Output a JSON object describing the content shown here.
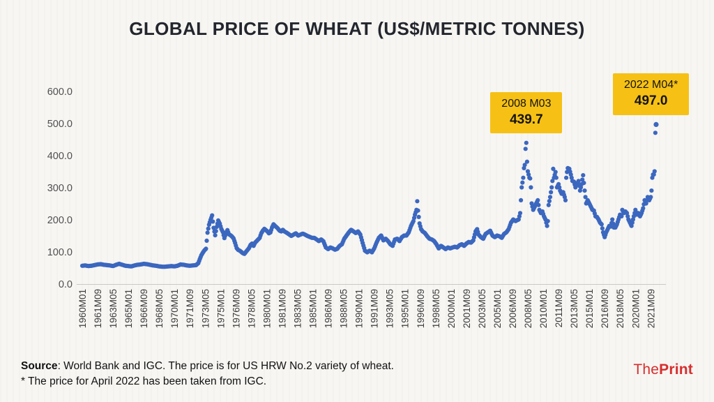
{
  "chart_data": {
    "type": "scatter",
    "title": "GLOBAL PRICE OF WHEAT (US$/METRIC TONNES)",
    "xlabel": "",
    "ylabel": "",
    "ylim": [
      0,
      600
    ],
    "grid": false,
    "legend": "none",
    "marker_color": "#3b67bf",
    "y_ticks": [
      "0.0",
      "100.0",
      "200.0",
      "300.0",
      "400.0",
      "500.0",
      "600.0"
    ],
    "x_range": [
      "1960M01",
      "2022M04"
    ],
    "x_tick_interval_months": 20,
    "x_ticks": [
      "1960M01",
      "1961M09",
      "1963M05",
      "1965M01",
      "1966M09",
      "1968M05",
      "1970M01",
      "1971M09",
      "1973M05",
      "1975M01",
      "1976M09",
      "1978M05",
      "1980M01",
      "1981M09",
      "1983M05",
      "1985M01",
      "1986M09",
      "1988M05",
      "1990M01",
      "1991M09",
      "1993M05",
      "1995M01",
      "1996M09",
      "1998M05",
      "2000M01",
      "2001M09",
      "2003M05",
      "2005M01",
      "2006M09",
      "2008M05",
      "2010M01",
      "2011M09",
      "2013M05",
      "2015M01",
      "2016M09",
      "2018M05",
      "2020M01",
      "2021M09"
    ],
    "annotations": [
      {
        "label": "2008 M03",
        "value_label": "439.7",
        "x": "2008M03",
        "y": 439.7
      },
      {
        "label": "2022 M04*",
        "value_label": "497.0",
        "x": "2022M04",
        "y": 497.0
      }
    ],
    "points": [
      [
        "1960M01",
        57
      ],
      [
        "1960M05",
        58
      ],
      [
        "1960M09",
        56
      ],
      [
        "1961M01",
        57
      ],
      [
        "1961M05",
        59
      ],
      [
        "1961M09",
        61
      ],
      [
        "1962M01",
        62
      ],
      [
        "1962M05",
        60
      ],
      [
        "1962M09",
        59
      ],
      [
        "1963M01",
        58
      ],
      [
        "1963M05",
        56
      ],
      [
        "1963M09",
        60
      ],
      [
        "1964M01",
        63
      ],
      [
        "1964M05",
        60
      ],
      [
        "1964M09",
        57
      ],
      [
        "1965M01",
        56
      ],
      [
        "1965M05",
        55
      ],
      [
        "1965M09",
        58
      ],
      [
        "1966M01",
        60
      ],
      [
        "1966M05",
        61
      ],
      [
        "1966M09",
        63
      ],
      [
        "1967M01",
        62
      ],
      [
        "1967M05",
        60
      ],
      [
        "1967M09",
        58
      ],
      [
        "1968M01",
        57
      ],
      [
        "1968M05",
        55
      ],
      [
        "1968M09",
        54
      ],
      [
        "1969M01",
        54
      ],
      [
        "1969M05",
        55
      ],
      [
        "1969M09",
        56
      ],
      [
        "1970M01",
        55
      ],
      [
        "1970M05",
        57
      ],
      [
        "1970M09",
        61
      ],
      [
        "1971M01",
        60
      ],
      [
        "1971M05",
        58
      ],
      [
        "1971M09",
        57
      ],
      [
        "1972M01",
        58
      ],
      [
        "1972M05",
        59
      ],
      [
        "1972M08",
        65
      ],
      [
        "1972M10",
        78
      ],
      [
        "1972M12",
        90
      ],
      [
        "1973M02",
        98
      ],
      [
        "1973M04",
        105
      ],
      [
        "1973M06",
        110
      ],
      [
        "1973M08",
        160
      ],
      [
        "1973M10",
        185
      ],
      [
        "1973M12",
        200
      ],
      [
        "1974M02",
        214
      ],
      [
        "1974M04",
        175
      ],
      [
        "1974M06",
        152
      ],
      [
        "1974M08",
        178
      ],
      [
        "1974M10",
        198
      ],
      [
        "1974M12",
        188
      ],
      [
        "1975M02",
        172
      ],
      [
        "1975M04",
        162
      ],
      [
        "1975M06",
        143
      ],
      [
        "1975M08",
        158
      ],
      [
        "1975M10",
        168
      ],
      [
        "1975M12",
        155
      ],
      [
        "1976M02",
        152
      ],
      [
        "1976M04",
        148
      ],
      [
        "1976M06",
        142
      ],
      [
        "1976M08",
        128
      ],
      [
        "1976M10",
        112
      ],
      [
        "1976M12",
        106
      ],
      [
        "1977M02",
        104
      ],
      [
        "1977M04",
        100
      ],
      [
        "1977M06",
        96
      ],
      [
        "1977M08",
        94
      ],
      [
        "1977M10",
        100
      ],
      [
        "1977M12",
        106
      ],
      [
        "1978M02",
        112
      ],
      [
        "1978M04",
        122
      ],
      [
        "1978M06",
        126
      ],
      [
        "1978M08",
        119
      ],
      [
        "1978M10",
        129
      ],
      [
        "1978M12",
        134
      ],
      [
        "1979M02",
        139
      ],
      [
        "1979M04",
        144
      ],
      [
        "1979M06",
        158
      ],
      [
        "1979M08",
        166
      ],
      [
        "1979M10",
        172
      ],
      [
        "1979M12",
        168
      ],
      [
        "1980M02",
        164
      ],
      [
        "1980M04",
        158
      ],
      [
        "1980M06",
        161
      ],
      [
        "1980M08",
        176
      ],
      [
        "1980M10",
        186
      ],
      [
        "1980M12",
        181
      ],
      [
        "1981M02",
        177
      ],
      [
        "1981M04",
        172
      ],
      [
        "1981M06",
        166
      ],
      [
        "1981M08",
        164
      ],
      [
        "1981M10",
        169
      ],
      [
        "1981M12",
        164
      ],
      [
        "1982M03",
        160
      ],
      [
        "1982M06",
        155
      ],
      [
        "1982M09",
        150
      ],
      [
        "1982M12",
        154
      ],
      [
        "1983M03",
        158
      ],
      [
        "1983M06",
        151
      ],
      [
        "1983M09",
        154
      ],
      [
        "1983M12",
        157
      ],
      [
        "1984M03",
        154
      ],
      [
        "1984M06",
        150
      ],
      [
        "1984M09",
        147
      ],
      [
        "1984M12",
        144
      ],
      [
        "1985M03",
        144
      ],
      [
        "1985M06",
        139
      ],
      [
        "1985M09",
        134
      ],
      [
        "1985M12",
        139
      ],
      [
        "1986M03",
        133
      ],
      [
        "1986M06",
        114
      ],
      [
        "1986M09",
        109
      ],
      [
        "1986M12",
        114
      ],
      [
        "1987M03",
        111
      ],
      [
        "1987M06",
        107
      ],
      [
        "1987M09",
        110
      ],
      [
        "1987M12",
        119
      ],
      [
        "1988M03",
        124
      ],
      [
        "1988M06",
        141
      ],
      [
        "1988M09",
        151
      ],
      [
        "1988M12",
        161
      ],
      [
        "1989M03",
        169
      ],
      [
        "1989M06",
        164
      ],
      [
        "1989M09",
        159
      ],
      [
        "1989M12",
        164
      ],
      [
        "1990M03",
        154
      ],
      [
        "1990M06",
        128
      ],
      [
        "1990M09",
        104
      ],
      [
        "1990M12",
        99
      ],
      [
        "1991M03",
        104
      ],
      [
        "1991M06",
        99
      ],
      [
        "1991M09",
        111
      ],
      [
        "1991M12",
        129
      ],
      [
        "1992M03",
        144
      ],
      [
        "1992M06",
        151
      ],
      [
        "1992M09",
        136
      ],
      [
        "1992M12",
        141
      ],
      [
        "1993M03",
        134
      ],
      [
        "1993M06",
        124
      ],
      [
        "1993M09",
        119
      ],
      [
        "1993M12",
        139
      ],
      [
        "1994M03",
        141
      ],
      [
        "1994M06",
        134
      ],
      [
        "1994M09",
        146
      ],
      [
        "1994M12",
        151
      ],
      [
        "1995M03",
        151
      ],
      [
        "1995M06",
        161
      ],
      [
        "1995M09",
        181
      ],
      [
        "1995M12",
        196
      ],
      [
        "1996M02",
        216
      ],
      [
        "1996M04",
        231
      ],
      [
        "1996M05",
        258
      ],
      [
        "1996M06",
        229
      ],
      [
        "1996M08",
        189
      ],
      [
        "1996M10",
        171
      ],
      [
        "1996M12",
        164
      ],
      [
        "1997M03",
        159
      ],
      [
        "1997M06",
        149
      ],
      [
        "1997M09",
        141
      ],
      [
        "1997M12",
        139
      ],
      [
        "1998M03",
        134
      ],
      [
        "1998M06",
        124
      ],
      [
        "1998M09",
        111
      ],
      [
        "1998M12",
        119
      ],
      [
        "1999M03",
        114
      ],
      [
        "1999M06",
        109
      ],
      [
        "1999M09",
        114
      ],
      [
        "1999M12",
        111
      ],
      [
        "2000M03",
        114
      ],
      [
        "2000M06",
        116
      ],
      [
        "2000M09",
        114
      ],
      [
        "2000M12",
        121
      ],
      [
        "2001M03",
        124
      ],
      [
        "2001M06",
        119
      ],
      [
        "2001M09",
        126
      ],
      [
        "2001M12",
        131
      ],
      [
        "2002M03",
        129
      ],
      [
        "2002M06",
        136
      ],
      [
        "2002M09",
        164
      ],
      [
        "2002M11",
        171
      ],
      [
        "2003M01",
        154
      ],
      [
        "2003M04",
        146
      ],
      [
        "2003M07",
        141
      ],
      [
        "2003M10",
        156
      ],
      [
        "2004M01",
        161
      ],
      [
        "2004M04",
        166
      ],
      [
        "2004M07",
        151
      ],
      [
        "2004M10",
        146
      ],
      [
        "2005M01",
        151
      ],
      [
        "2005M04",
        149
      ],
      [
        "2005M07",
        144
      ],
      [
        "2005M10",
        156
      ],
      [
        "2006M01",
        161
      ],
      [
        "2006M04",
        171
      ],
      [
        "2006M07",
        191
      ],
      [
        "2006M10",
        201
      ],
      [
        "2007M01",
        196
      ],
      [
        "2007M03",
        199
      ],
      [
        "2007M05",
        201
      ],
      [
        "2007M07",
        221
      ],
      [
        "2007M09",
        301
      ],
      [
        "2007M11",
        331
      ],
      [
        "2007M12",
        361
      ],
      [
        "2008M01",
        371
      ],
      [
        "2008M02",
        421
      ],
      [
        "2008M03",
        439.7
      ],
      [
        "2008M04",
        381
      ],
      [
        "2008M05",
        351
      ],
      [
        "2008M06",
        341
      ],
      [
        "2008M07",
        331
      ],
      [
        "2008M08",
        329
      ],
      [
        "2008M09",
        301
      ],
      [
        "2008M10",
        251
      ],
      [
        "2008M11",
        241
      ],
      [
        "2008M12",
        231
      ],
      [
        "2009M02",
        241
      ],
      [
        "2009M04",
        251
      ],
      [
        "2009M06",
        261
      ],
      [
        "2009M08",
        231
      ],
      [
        "2009M10",
        221
      ],
      [
        "2009M12",
        226
      ],
      [
        "2010M02",
        211
      ],
      [
        "2010M04",
        201
      ],
      [
        "2010M06",
        181
      ],
      [
        "2010M07",
        196
      ],
      [
        "2010M08",
        246
      ],
      [
        "2010M10",
        271
      ],
      [
        "2010M12",
        301
      ],
      [
        "2011M01",
        321
      ],
      [
        "2011M02",
        359
      ],
      [
        "2011M03",
        331
      ],
      [
        "2011M05",
        349
      ],
      [
        "2011M06",
        331
      ],
      [
        "2011M07",
        301
      ],
      [
        "2011M09",
        311
      ],
      [
        "2011M11",
        291
      ],
      [
        "2012M01",
        281
      ],
      [
        "2012M03",
        286
      ],
      [
        "2012M05",
        271
      ],
      [
        "2012M06",
        261
      ],
      [
        "2012M07",
        331
      ],
      [
        "2012M08",
        349
      ],
      [
        "2012M09",
        361
      ],
      [
        "2012M11",
        359
      ],
      [
        "2013M01",
        341
      ],
      [
        "2013M03",
        321
      ],
      [
        "2013M05",
        319
      ],
      [
        "2013M07",
        301
      ],
      [
        "2013M09",
        311
      ],
      [
        "2013M11",
        321
      ],
      [
        "2014M01",
        291
      ],
      [
        "2014M03",
        311
      ],
      [
        "2014M05",
        339
      ],
      [
        "2014M07",
        291
      ],
      [
        "2014M09",
        251
      ],
      [
        "2014M11",
        261
      ],
      [
        "2015M01",
        251
      ],
      [
        "2015M03",
        241
      ],
      [
        "2015M05",
        231
      ],
      [
        "2015M07",
        229
      ],
      [
        "2015M09",
        211
      ],
      [
        "2015M11",
        209
      ],
      [
        "2016M01",
        201
      ],
      [
        "2016M03",
        191
      ],
      [
        "2016M05",
        186
      ],
      [
        "2016M07",
        161
      ],
      [
        "2016M09",
        146
      ],
      [
        "2016M11",
        161
      ],
      [
        "2017M01",
        171
      ],
      [
        "2017M03",
        181
      ],
      [
        "2017M05",
        179
      ],
      [
        "2017M07",
        201
      ],
      [
        "2017M09",
        176
      ],
      [
        "2017M11",
        176
      ],
      [
        "2018M01",
        186
      ],
      [
        "2018M03",
        201
      ],
      [
        "2018M05",
        216
      ],
      [
        "2018M07",
        211
      ],
      [
        "2018M08",
        231
      ],
      [
        "2018M10",
        221
      ],
      [
        "2018M12",
        226
      ],
      [
        "2019M02",
        221
      ],
      [
        "2019M04",
        201
      ],
      [
        "2019M06",
        191
      ],
      [
        "2019M08",
        181
      ],
      [
        "2019M10",
        201
      ],
      [
        "2019M12",
        221
      ],
      [
        "2020M01",
        231
      ],
      [
        "2020M03",
        216
      ],
      [
        "2020M05",
        221
      ],
      [
        "2020M07",
        211
      ],
      [
        "2020M09",
        221
      ],
      [
        "2020M11",
        236
      ],
      [
        "2021M01",
        261
      ],
      [
        "2021M03",
        251
      ],
      [
        "2021M05",
        271
      ],
      [
        "2021M07",
        261
      ],
      [
        "2021M09",
        271
      ],
      [
        "2021M10",
        291
      ],
      [
        "2021M11",
        331
      ],
      [
        "2021M12",
        341
      ],
      [
        "2022M01",
        341
      ],
      [
        "2022M02",
        351
      ],
      [
        "2022M03",
        471
      ],
      [
        "2022M04",
        497
      ]
    ]
  },
  "footer": {
    "source_label": "Source",
    "source_rest": ": World Bank and IGC. The price is for US HRW No.2 variety of wheat.",
    "footnote": "* The price for April 2022 has been taken from IGC.",
    "logo_the": "The",
    "logo_print": "Print"
  },
  "colors": {
    "series_blue": "#3b67bf",
    "annotation_yellow": "#f6c114",
    "logo_red": "#d72e2e"
  }
}
